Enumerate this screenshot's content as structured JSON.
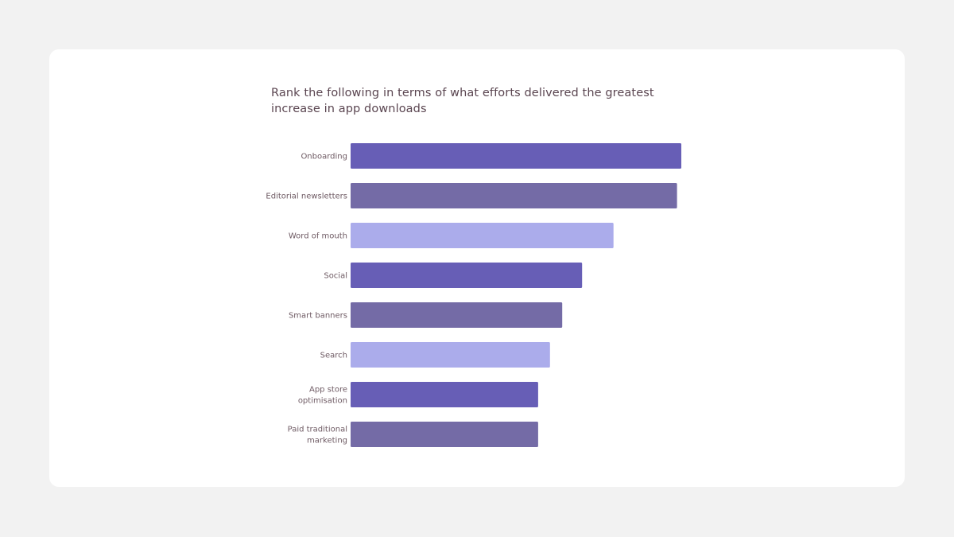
{
  "chart_data": {
    "type": "bar",
    "orientation": "horizontal",
    "title": "Rank the following in terms of what efforts delivered the greatest increase in app downloads",
    "categories": [
      [
        "Onboarding"
      ],
      [
        "Editorial newsletters"
      ],
      [
        "Word of mouth"
      ],
      [
        "Social"
      ],
      [
        "Smart banners"
      ],
      [
        "Search"
      ],
      [
        "App store",
        "optimisation"
      ],
      [
        "Paid traditional",
        "marketing"
      ]
    ],
    "values": [
      10,
      9.87,
      7.95,
      7.0,
      6.4,
      6.03,
      5.67,
      5.67
    ],
    "xlim": [
      0,
      10
    ],
    "grid": false,
    "colors": [
      "#675eb6",
      "#746ba6",
      "#abaceb",
      "#675eb6",
      "#746ba6",
      "#abaceb",
      "#675eb6",
      "#746ba6"
    ]
  }
}
